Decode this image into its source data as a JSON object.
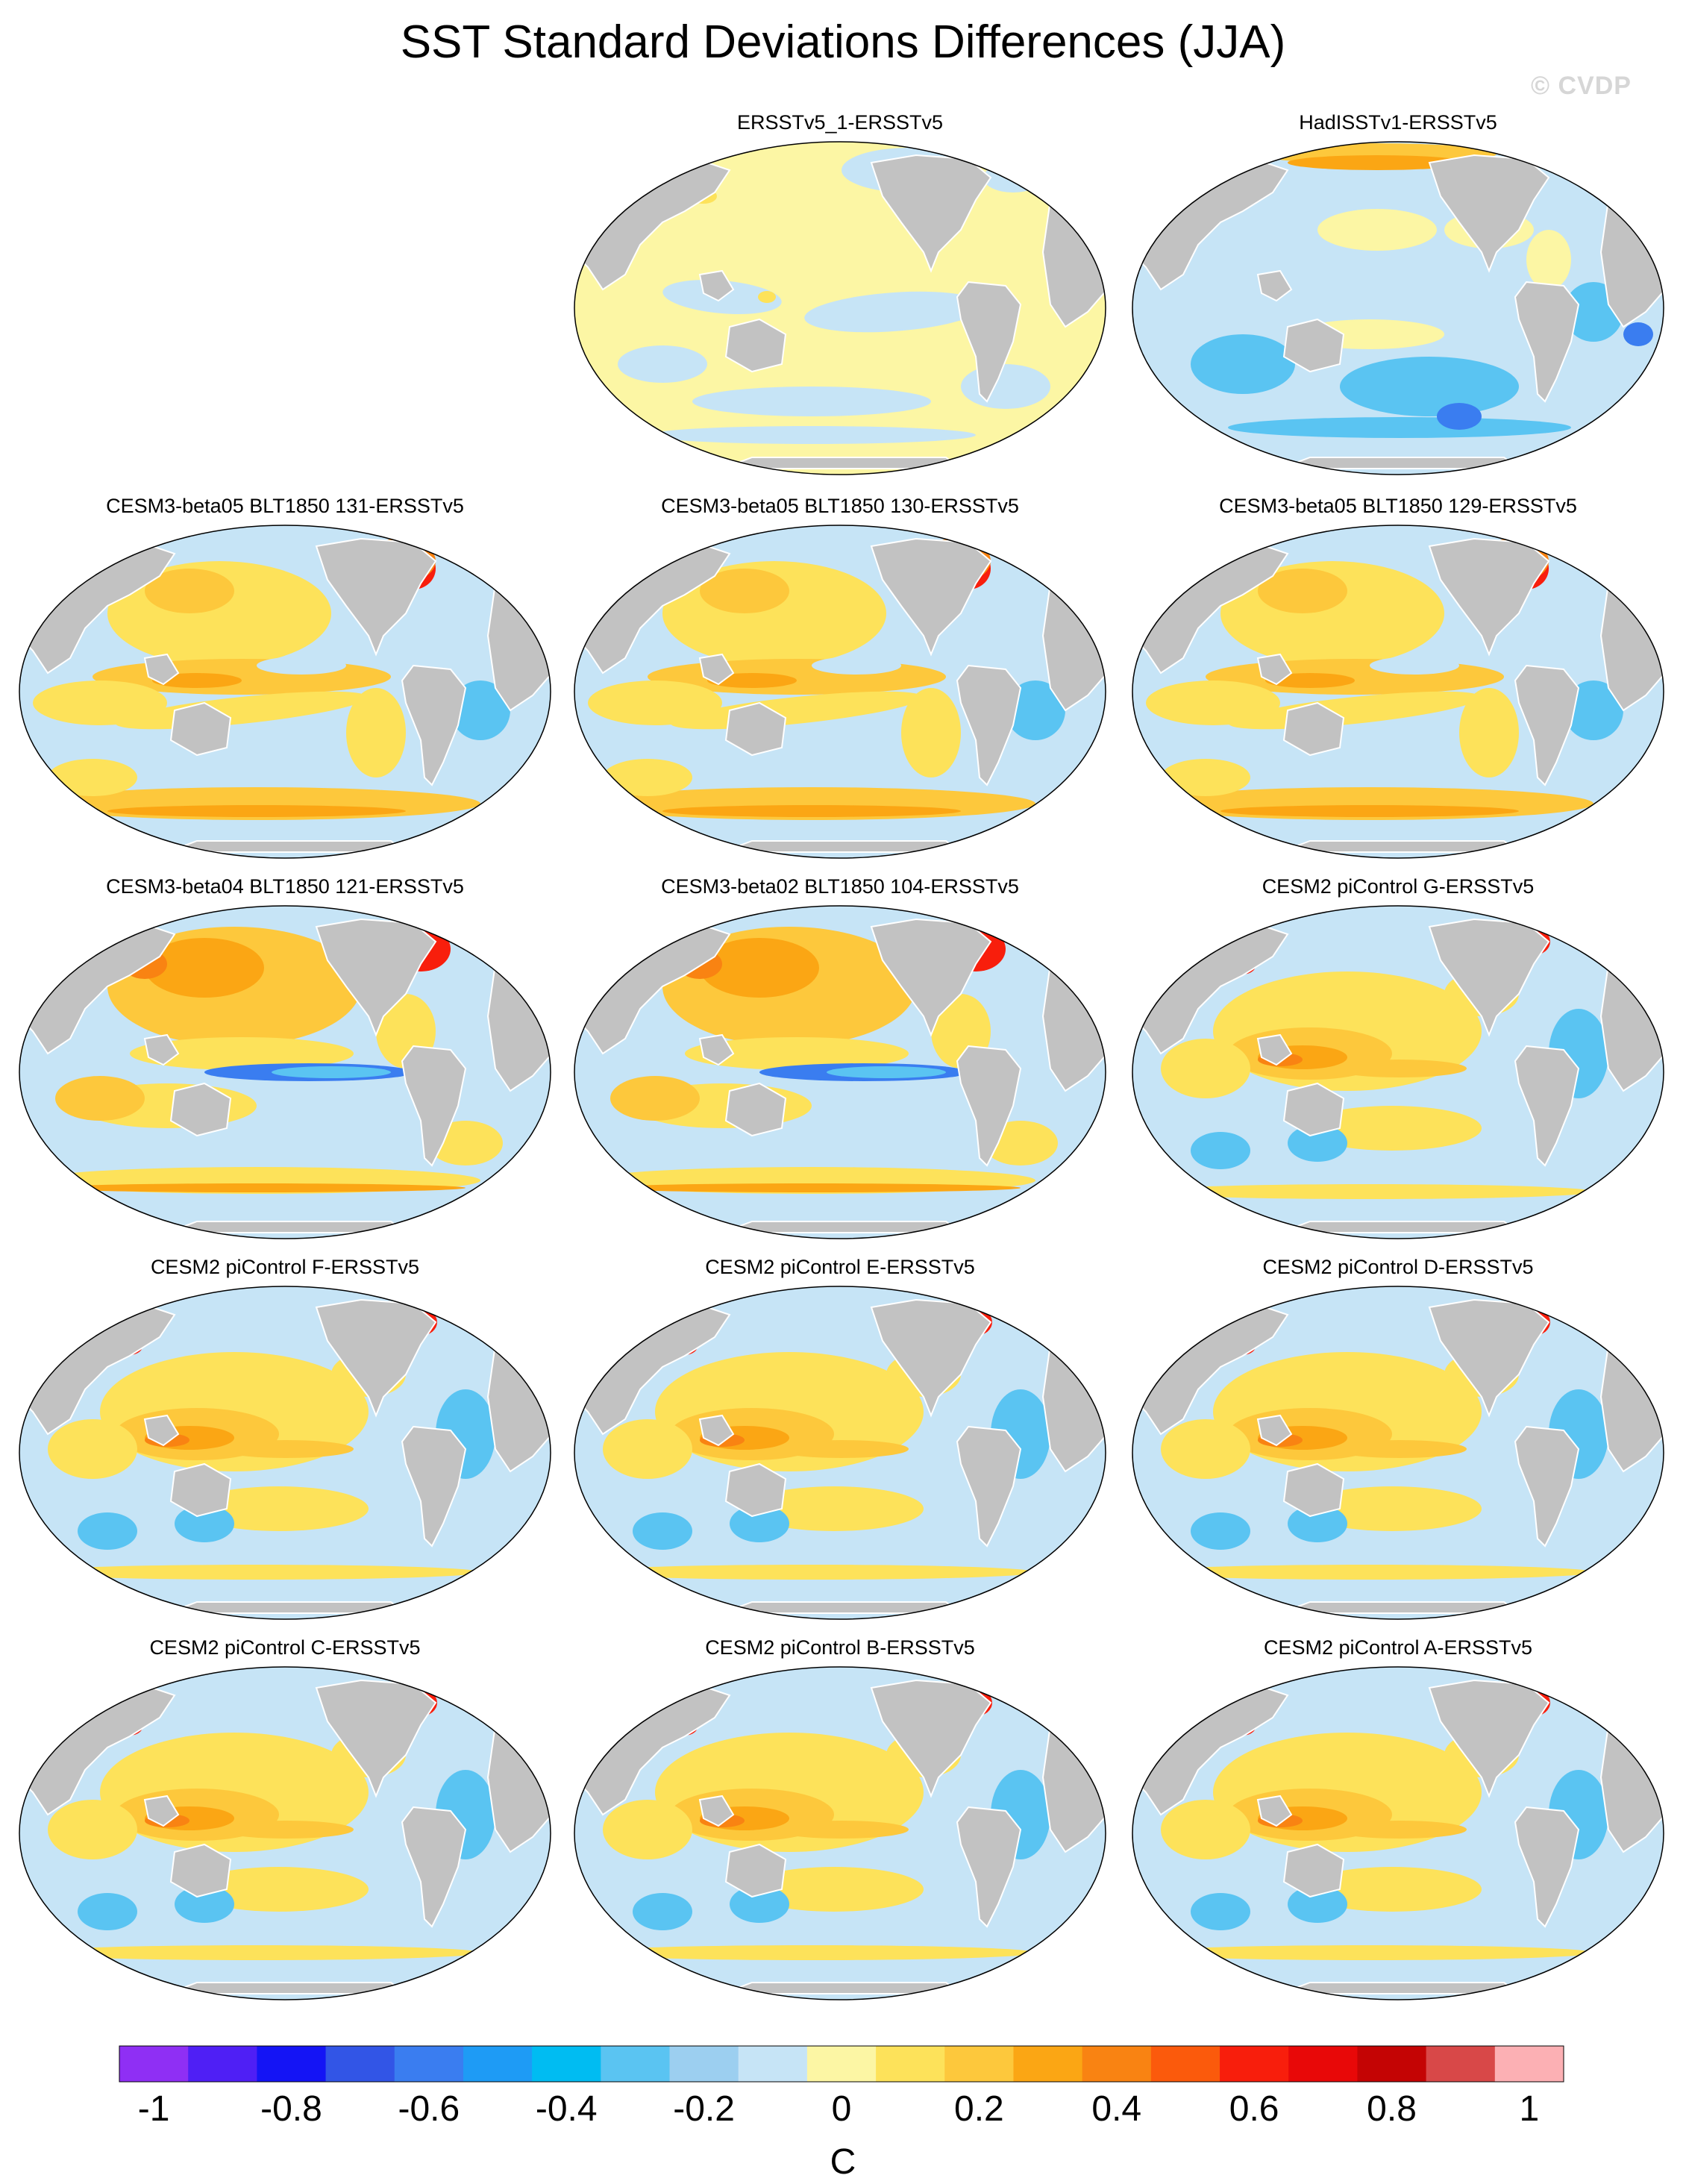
{
  "title": "SST Standard Deviations Differences (JJA)",
  "watermark": "© CVDP",
  "units": "C",
  "colorbar": {
    "colors": [
      "#8f2ff4",
      "#4f1ff5",
      "#1414f5",
      "#3255e6",
      "#3a7df0",
      "#1e9bf5",
      "#00bcf2",
      "#5ac4f2",
      "#9ccff0",
      "#c6e4f6",
      "#fcf6a4",
      "#fde25a",
      "#fdc83c",
      "#fba614",
      "#f98312",
      "#fb5a0c",
      "#f81e0c",
      "#e80808",
      "#c40404",
      "#d84848",
      "#fcb0b4"
    ],
    "tick_values": [
      -1,
      -0.8,
      -0.6,
      -0.4,
      -0.2,
      0,
      0.2,
      0.4,
      0.6,
      0.8,
      1
    ],
    "tick_labels": [
      "-1",
      "-0.8",
      "-0.6",
      "-0.4",
      "-0.2",
      "0",
      "0.2",
      "0.4",
      "0.6",
      "0.8",
      "1"
    ]
  },
  "panels": [
    {
      "title": "ERSSTv5_1-ERSSTv5",
      "pattern": "obs1"
    },
    {
      "title": "HadISSTv1-ERSSTv5",
      "pattern": "had"
    },
    {
      "title": "CESM3-beta05 BLT1850 131-ERSSTv5",
      "pattern": "cesm3"
    },
    {
      "title": "CESM3-beta05 BLT1850 130-ERSSTv5",
      "pattern": "cesm3"
    },
    {
      "title": "CESM3-beta05 BLT1850 129-ERSSTv5",
      "pattern": "cesm3"
    },
    {
      "title": "CESM3-beta04 BLT1850 121-ERSSTv5",
      "pattern": "cesm3b"
    },
    {
      "title": "CESM3-beta02 BLT1850 104-ERSSTv5",
      "pattern": "cesm3b"
    },
    {
      "title": "CESM2 piControl G-ERSSTv5",
      "pattern": "cesm2"
    },
    {
      "title": "CESM2 piControl F-ERSSTv5",
      "pattern": "cesm2"
    },
    {
      "title": "CESM2 piControl E-ERSSTv5",
      "pattern": "cesm2"
    },
    {
      "title": "CESM2 piControl D-ERSSTv5",
      "pattern": "cesm2"
    },
    {
      "title": "CESM2 piControl C-ERSSTv5",
      "pattern": "cesm2"
    },
    {
      "title": "CESM2 piControl B-ERSSTv5",
      "pattern": "cesm2"
    },
    {
      "title": "CESM2 piControl A-ERSSTv5",
      "pattern": "cesm2"
    }
  ]
}
